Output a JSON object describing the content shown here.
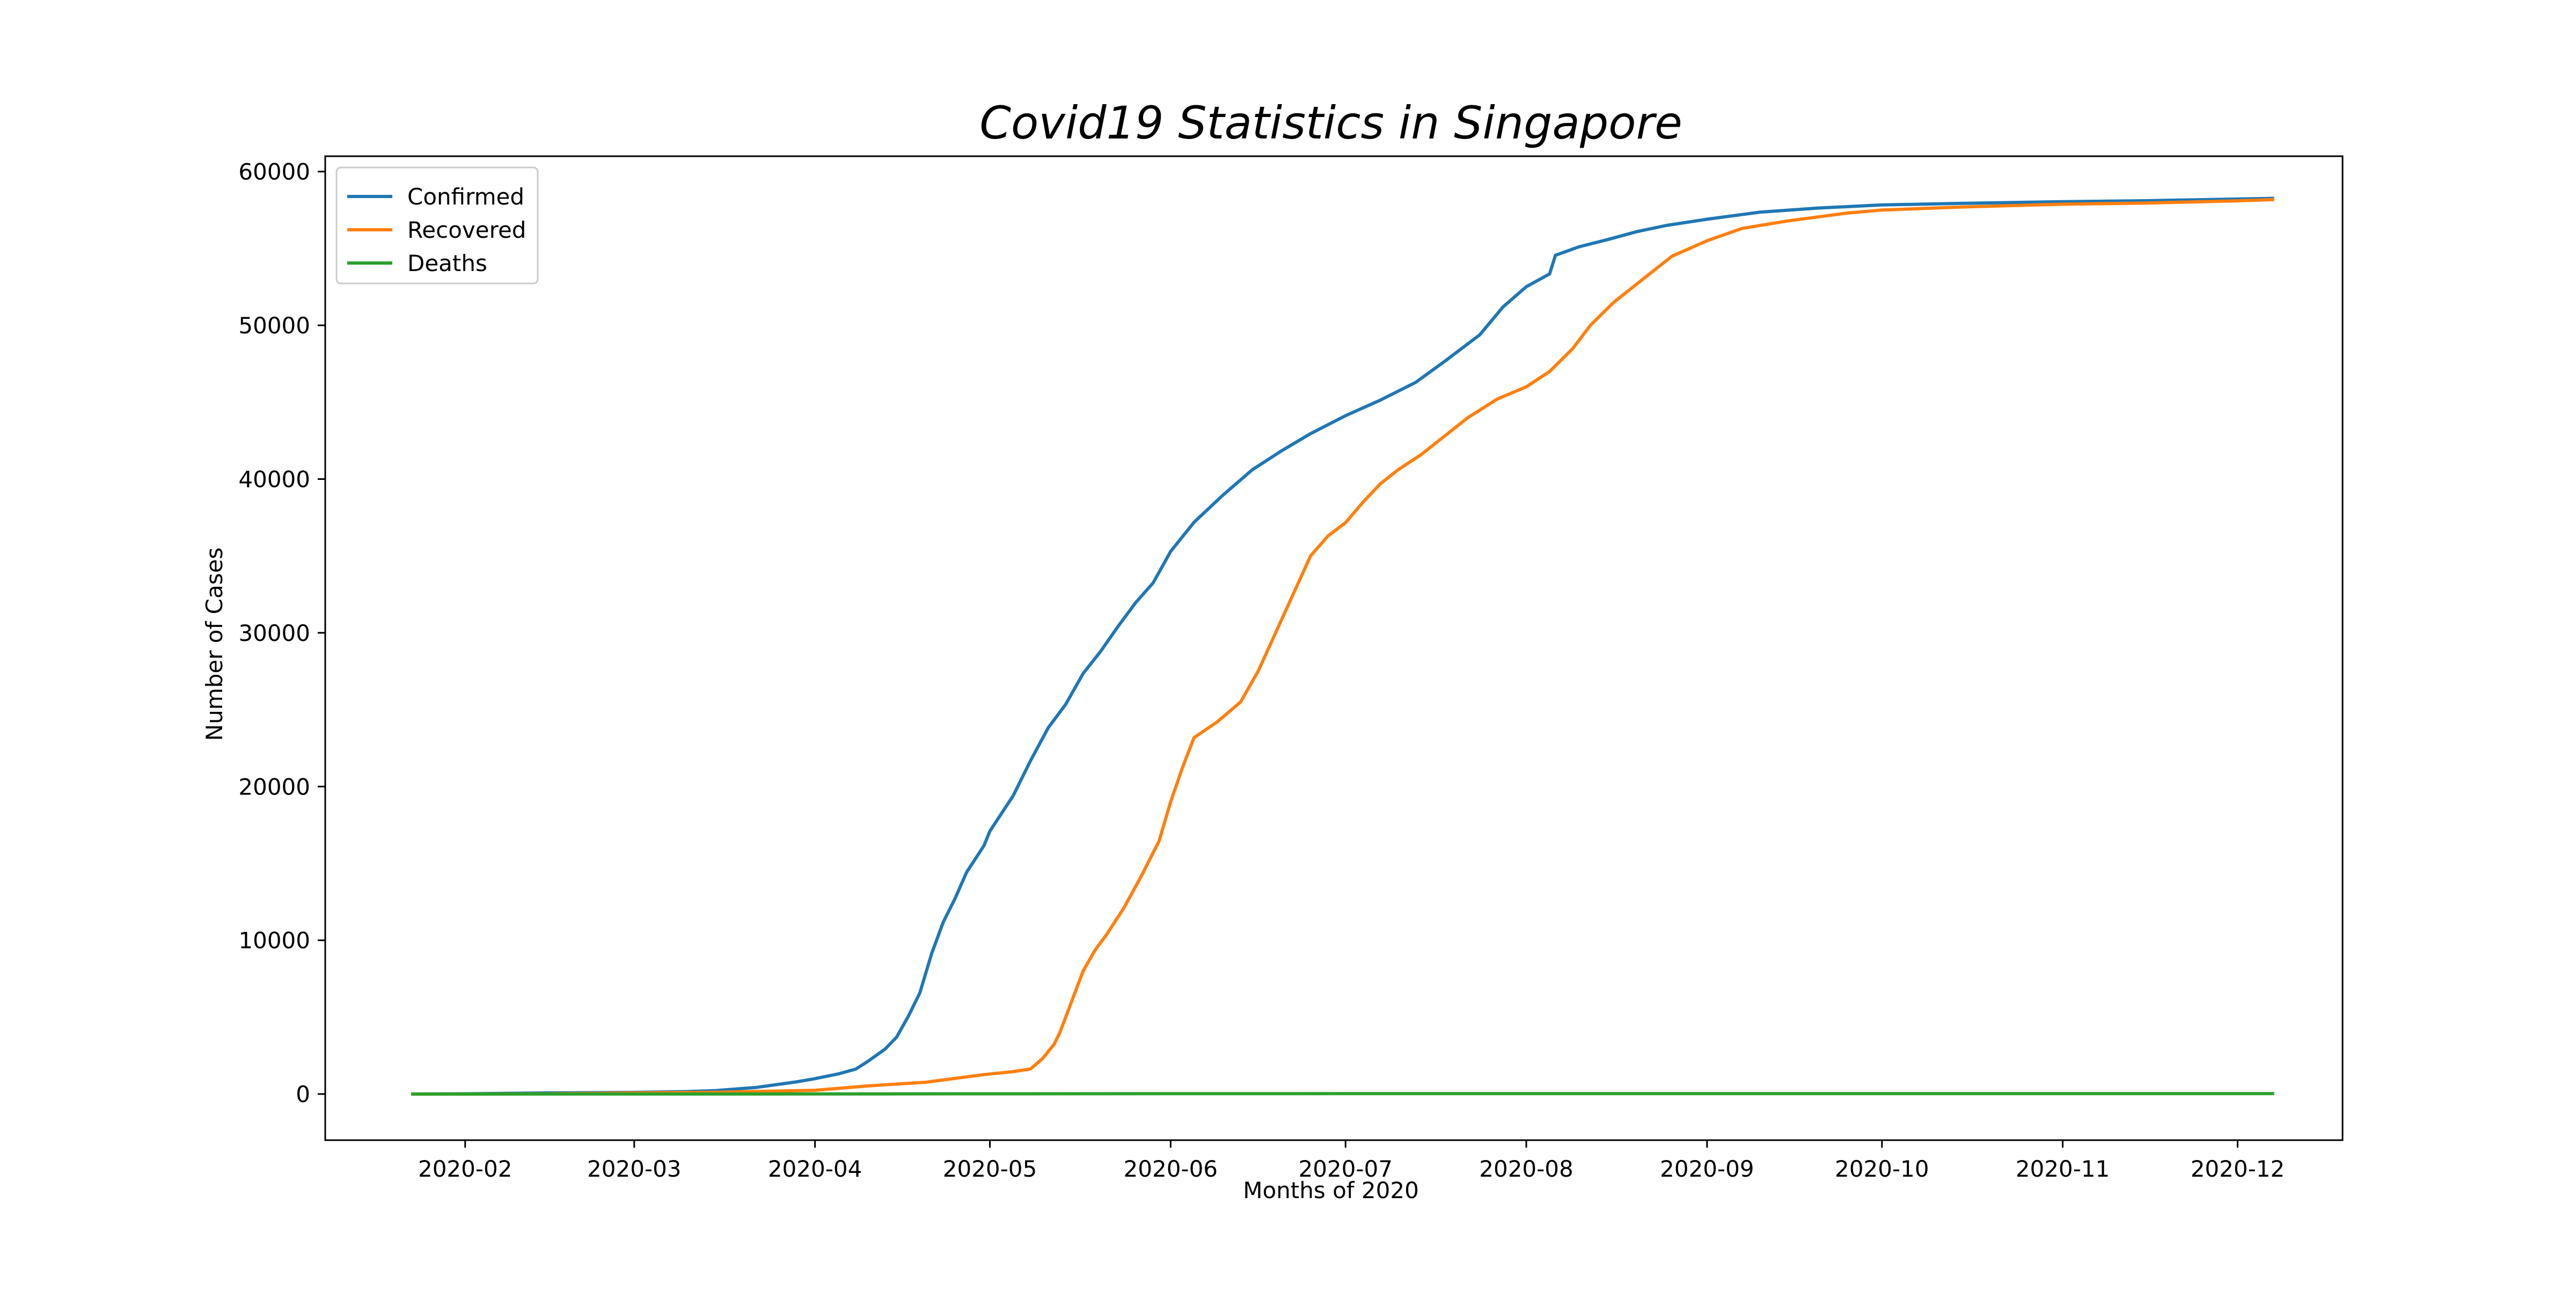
{
  "chart_data": {
    "type": "line",
    "title": "Covid19 Statistics in Singapore",
    "xlabel": "Months of 2020",
    "ylabel": "Number of Cases",
    "xlim": [
      "2020-01-08",
      "2020-12-19"
    ],
    "ylim": [
      -3000,
      61000
    ],
    "x_ticks": [
      "2020-02-01",
      "2020-03-01",
      "2020-04-01",
      "2020-05-01",
      "2020-06-01",
      "2020-07-01",
      "2020-08-01",
      "2020-09-01",
      "2020-10-01",
      "2020-11-01",
      "2020-12-01"
    ],
    "x_tick_labels": [
      "2020-02",
      "2020-03",
      "2020-04",
      "2020-05",
      "2020-06",
      "2020-07",
      "2020-08",
      "2020-09",
      "2020-10",
      "2020-11",
      "2020-12"
    ],
    "y_ticks": [
      0,
      10000,
      20000,
      30000,
      40000,
      50000,
      60000
    ],
    "y_tick_labels": [
      "0",
      "10000",
      "20000",
      "30000",
      "40000",
      "50000",
      "60000"
    ],
    "grid": false,
    "legend_position": "top-left",
    "series": [
      {
        "name": "Confirmed",
        "color": "#1f77b4",
        "points": [
          [
            "2020-01-23",
            1
          ],
          [
            "2020-02-01",
            18
          ],
          [
            "2020-02-15",
            72
          ],
          [
            "2020-03-01",
            106
          ],
          [
            "2020-03-10",
            160
          ],
          [
            "2020-03-15",
            226
          ],
          [
            "2020-03-22",
            432
          ],
          [
            "2020-03-29",
            802
          ],
          [
            "2020-04-01",
            1000
          ],
          [
            "2020-04-05",
            1309
          ],
          [
            "2020-04-08",
            1623
          ],
          [
            "2020-04-10",
            2108
          ],
          [
            "2020-04-13",
            2918
          ],
          [
            "2020-04-15",
            3699
          ],
          [
            "2020-04-17",
            5050
          ],
          [
            "2020-04-19",
            6588
          ],
          [
            "2020-04-21",
            9125
          ],
          [
            "2020-04-23",
            11178
          ],
          [
            "2020-04-25",
            12693
          ],
          [
            "2020-04-27",
            14423
          ],
          [
            "2020-04-30",
            16169
          ],
          [
            "2020-05-01",
            17101
          ],
          [
            "2020-05-05",
            19410
          ],
          [
            "2020-05-08",
            21707
          ],
          [
            "2020-05-11",
            23822
          ],
          [
            "2020-05-14",
            25346
          ],
          [
            "2020-05-17",
            27356
          ],
          [
            "2020-05-20",
            28794
          ],
          [
            "2020-05-23",
            30426
          ],
          [
            "2020-05-26",
            31960
          ],
          [
            "2020-05-29",
            33249
          ],
          [
            "2020-06-01",
            35292
          ],
          [
            "2020-06-05",
            37183
          ],
          [
            "2020-06-10",
            38965
          ],
          [
            "2020-06-15",
            40604
          ],
          [
            "2020-06-20",
            41833
          ],
          [
            "2020-06-25",
            42955
          ],
          [
            "2020-07-01",
            44122
          ],
          [
            "2020-07-07",
            45140
          ],
          [
            "2020-07-13",
            46283
          ],
          [
            "2020-07-18",
            47655
          ],
          [
            "2020-07-24",
            49375
          ],
          [
            "2020-07-28",
            51197
          ],
          [
            "2020-08-01",
            52512
          ],
          [
            "2020-08-05",
            53346
          ],
          [
            "2020-08-06",
            54555
          ],
          [
            "2020-08-10",
            55104
          ],
          [
            "2020-08-15",
            55580
          ],
          [
            "2020-08-20",
            56099
          ],
          [
            "2020-08-25",
            56495
          ],
          [
            "2020-09-01",
            56901
          ],
          [
            "2020-09-10",
            57357
          ],
          [
            "2020-09-20",
            57627
          ],
          [
            "2020-10-01",
            57830
          ],
          [
            "2020-10-15",
            57933
          ],
          [
            "2020-11-01",
            58043
          ],
          [
            "2020-11-15",
            58102
          ],
          [
            "2020-12-01",
            58218
          ],
          [
            "2020-12-07",
            58255
          ]
        ]
      },
      {
        "name": "Recovered",
        "color": "#ff7f0e",
        "points": [
          [
            "2020-01-23",
            0
          ],
          [
            "2020-02-01",
            0
          ],
          [
            "2020-02-15",
            17
          ],
          [
            "2020-03-01",
            72
          ],
          [
            "2020-03-15",
            114
          ],
          [
            "2020-04-01",
            245
          ],
          [
            "2020-04-10",
            528
          ],
          [
            "2020-04-20",
            768
          ],
          [
            "2020-04-30",
            1268
          ],
          [
            "2020-05-05",
            1457
          ],
          [
            "2020-05-08",
            1634
          ],
          [
            "2020-05-10",
            2296
          ],
          [
            "2020-05-12",
            3225
          ],
          [
            "2020-05-13",
            4000
          ],
          [
            "2020-05-15",
            6000
          ],
          [
            "2020-05-17",
            8000
          ],
          [
            "2020-05-19",
            9340
          ],
          [
            "2020-05-21",
            10365
          ],
          [
            "2020-05-24",
            12117
          ],
          [
            "2020-05-27",
            14200
          ],
          [
            "2020-05-30",
            16444
          ],
          [
            "2020-06-01",
            19000
          ],
          [
            "2020-06-03",
            21200
          ],
          [
            "2020-06-05",
            23175
          ],
          [
            "2020-06-09",
            24209
          ],
          [
            "2020-06-13",
            25500
          ],
          [
            "2020-06-16",
            27500
          ],
          [
            "2020-06-19",
            30000
          ],
          [
            "2020-06-22",
            32500
          ],
          [
            "2020-06-25",
            35000
          ],
          [
            "2020-06-28",
            36300
          ],
          [
            "2020-07-01",
            37163
          ],
          [
            "2020-07-04",
            38500
          ],
          [
            "2020-07-07",
            39700
          ],
          [
            "2020-07-10",
            40600
          ],
          [
            "2020-07-14",
            41600
          ],
          [
            "2020-07-18",
            42800
          ],
          [
            "2020-07-22",
            44000
          ],
          [
            "2020-07-27",
            45200
          ],
          [
            "2020-08-01",
            46000
          ],
          [
            "2020-08-05",
            47000
          ],
          [
            "2020-08-09",
            48500
          ],
          [
            "2020-08-12",
            50000
          ],
          [
            "2020-08-16",
            51500
          ],
          [
            "2020-08-21",
            53000
          ],
          [
            "2020-08-26",
            54500
          ],
          [
            "2020-09-01",
            55500
          ],
          [
            "2020-09-07",
            56300
          ],
          [
            "2020-09-15",
            56800
          ],
          [
            "2020-09-25",
            57300
          ],
          [
            "2020-10-01",
            57500
          ],
          [
            "2020-10-15",
            57700
          ],
          [
            "2020-11-01",
            57880
          ],
          [
            "2020-11-15",
            57950
          ],
          [
            "2020-12-01",
            58100
          ],
          [
            "2020-12-07",
            58175
          ]
        ]
      },
      {
        "name": "Deaths",
        "color": "#2ca02c",
        "points": [
          [
            "2020-01-23",
            0
          ],
          [
            "2020-03-21",
            2
          ],
          [
            "2020-04-15",
            10
          ],
          [
            "2020-05-01",
            15
          ],
          [
            "2020-06-01",
            24
          ],
          [
            "2020-07-01",
            26
          ],
          [
            "2020-09-01",
            27
          ],
          [
            "2020-12-07",
            29
          ]
        ]
      }
    ]
  }
}
